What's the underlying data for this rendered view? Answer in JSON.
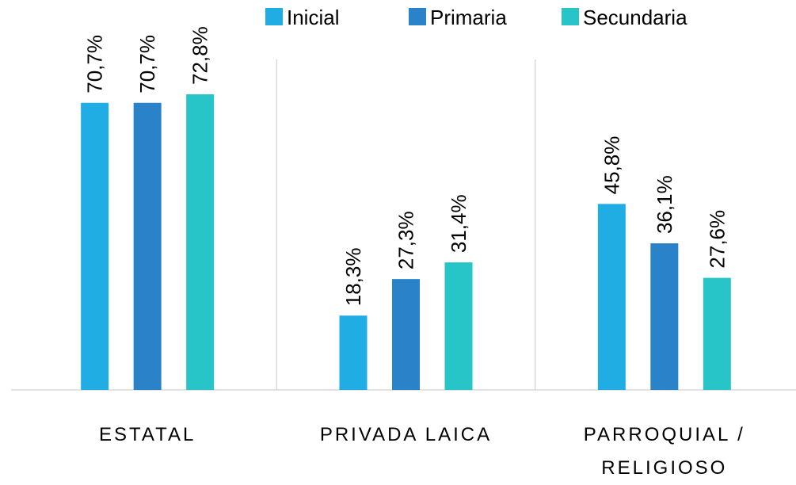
{
  "chart_data": {
    "type": "bar",
    "categories": [
      "ESTATAL",
      "PRIVADA LAICA",
      "PARROQUIAL / RELIGIOSO"
    ],
    "series": [
      {
        "name": "Inicial",
        "color": "#1fade4",
        "values": [
          70.7,
          18.3,
          45.8
        ],
        "value_labels": [
          "70,7%",
          "18,3%",
          "45,8%"
        ]
      },
      {
        "name": "Primaria",
        "color": "#2a82c8",
        "values": [
          70.7,
          27.3,
          36.1
        ],
        "value_labels": [
          "70,7%",
          "27,3%",
          "36,1%"
        ]
      },
      {
        "name": "Secundaria",
        "color": "#27c4c8",
        "values": [
          72.8,
          31.4,
          27.6
        ],
        "value_labels": [
          "72,8%",
          "31,4%",
          "27,6%"
        ]
      }
    ]
  }
}
